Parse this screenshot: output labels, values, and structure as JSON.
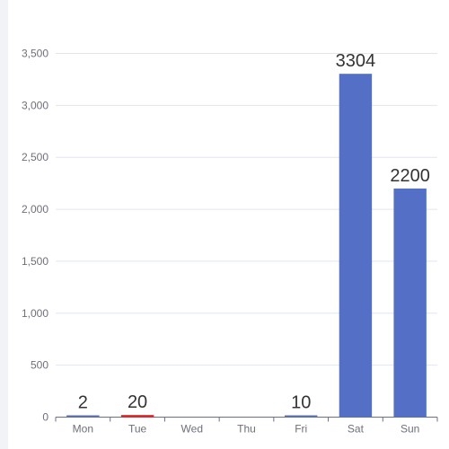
{
  "chart_data": {
    "type": "bar",
    "categories": [
      "Mon",
      "Tue",
      "Wed",
      "Thu",
      "Fri",
      "Sat",
      "Sun"
    ],
    "values": [
      2,
      20,
      0,
      0,
      10,
      3304,
      2200
    ],
    "data_labels": [
      "2",
      "20",
      "",
      "",
      "10",
      "3304",
      "2200"
    ],
    "highlight_index": 1,
    "ylim": [
      0,
      3500
    ],
    "yticks": [
      0,
      500,
      1000,
      1500,
      2000,
      2500,
      3000,
      3500
    ],
    "ytick_labels": [
      "0",
      "500",
      "1,000",
      "1,500",
      "2,000",
      "2,500",
      "3,000",
      "3,500"
    ],
    "title": "",
    "xlabel": "",
    "ylabel": "",
    "grid": true,
    "colors": {
      "bar": "#5470c6",
      "highlight": "#e01f1f",
      "grid": "#e0e6f1",
      "axis": "#6e7079",
      "tick_label": "#6e7079",
      "data_label": "#333333"
    }
  }
}
